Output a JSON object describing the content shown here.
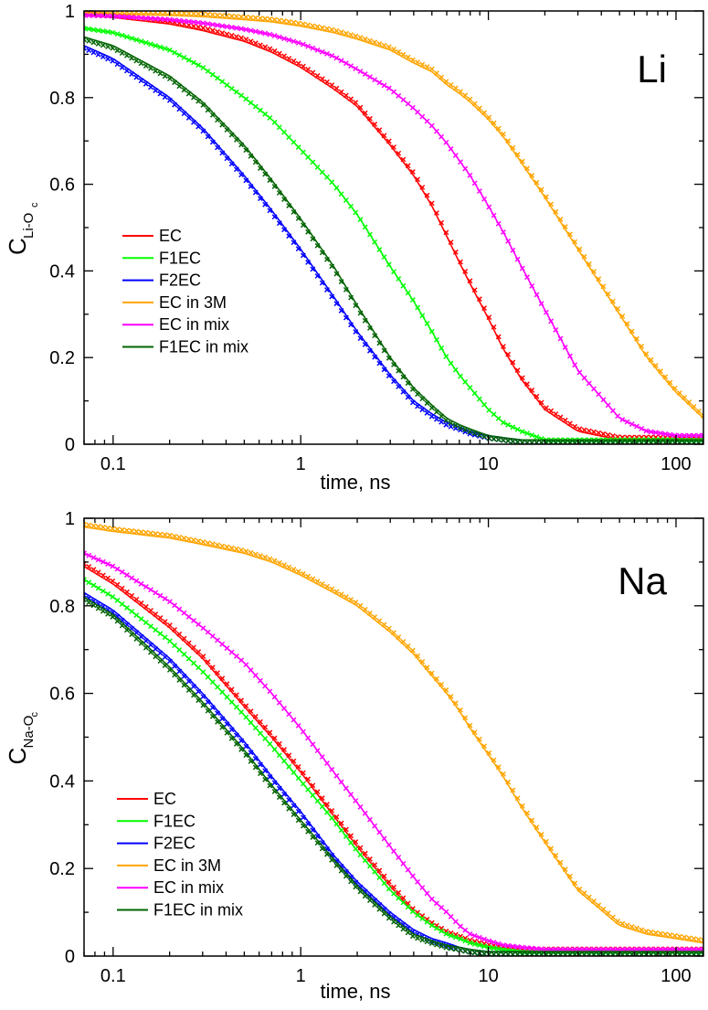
{
  "colors": {
    "EC": "#ff0000",
    "F1EC": "#00ff00",
    "F2EC": "#0000ff",
    "EC in 3M": "#ffa500",
    "EC in mix": "#ff00ff",
    "F1EC in mix": "#006400"
  },
  "chart_data": [
    {
      "type": "line",
      "panel_label": "Li",
      "xlabel": "time, ns",
      "ylabel": {
        "main": "C",
        "sub": "Li-O",
        "subsub": "c"
      },
      "x_scale": "log",
      "xlim": [
        0.07,
        140
      ],
      "ylim": [
        0,
        1
      ],
      "x_ticks": [
        0.1,
        1,
        10,
        100
      ],
      "x_tick_labels": [
        "0.1",
        "1",
        "10",
        "100"
      ],
      "y_ticks": [
        0,
        0.2,
        0.4,
        0.6,
        0.8,
        1
      ],
      "y_tick_labels": [
        "0",
        "0.2",
        "0.4",
        "0.6",
        "0.8",
        "1"
      ],
      "legend_position": "center-left",
      "markers": "x (simulation)",
      "lines": "fit",
      "series": [
        {
          "name": "EC",
          "x": [
            0.07,
            0.1,
            0.2,
            0.3,
            0.5,
            0.7,
            1,
            1.5,
            2,
            3,
            4,
            5,
            6,
            7,
            8,
            10,
            12,
            15,
            20,
            30,
            50,
            70,
            100,
            140
          ],
          "y": [
            0.99,
            0.985,
            0.97,
            0.955,
            0.93,
            0.905,
            0.87,
            0.82,
            0.78,
            0.69,
            0.62,
            0.55,
            0.48,
            0.42,
            0.37,
            0.29,
            0.22,
            0.15,
            0.08,
            0.03,
            0.01,
            0.01,
            0.01,
            0.01
          ]
        },
        {
          "name": "F1EC",
          "x": [
            0.07,
            0.1,
            0.2,
            0.3,
            0.5,
            0.7,
            1,
            1.5,
            2,
            3,
            4,
            5,
            6,
            7,
            8,
            10,
            12,
            15,
            20,
            30,
            50,
            70,
            100,
            140
          ],
          "y": [
            0.96,
            0.95,
            0.91,
            0.87,
            0.8,
            0.75,
            0.68,
            0.6,
            0.53,
            0.41,
            0.33,
            0.26,
            0.2,
            0.16,
            0.13,
            0.08,
            0.05,
            0.03,
            0.01,
            0.01,
            0.01,
            0.01,
            0.01,
            0.01
          ]
        },
        {
          "name": "F2EC",
          "x": [
            0.07,
            0.1,
            0.2,
            0.3,
            0.5,
            0.7,
            1,
            1.5,
            2,
            3,
            4,
            5,
            6,
            7,
            8,
            10,
            12,
            15,
            20,
            30,
            50,
            70,
            100,
            140
          ],
          "y": [
            0.92,
            0.89,
            0.8,
            0.73,
            0.62,
            0.54,
            0.45,
            0.34,
            0.26,
            0.16,
            0.1,
            0.07,
            0.05,
            0.04,
            0.03,
            0.02,
            0.015,
            0.01,
            0.01,
            0.01,
            0.01,
            0.01,
            0.01,
            0.01
          ]
        },
        {
          "name": "EC in 3M",
          "x": [
            0.07,
            0.1,
            0.2,
            0.3,
            0.5,
            0.7,
            1,
            1.5,
            2,
            3,
            4,
            5,
            6,
            7,
            8,
            10,
            12,
            15,
            20,
            30,
            50,
            70,
            100,
            140
          ],
          "y": [
            0.995,
            0.993,
            0.99,
            0.987,
            0.98,
            0.975,
            0.965,
            0.95,
            0.935,
            0.91,
            0.88,
            0.86,
            0.83,
            0.81,
            0.79,
            0.75,
            0.71,
            0.65,
            0.57,
            0.45,
            0.3,
            0.2,
            0.12,
            0.06
          ]
        },
        {
          "name": "EC in mix",
          "x": [
            0.07,
            0.1,
            0.2,
            0.3,
            0.5,
            0.7,
            1,
            1.5,
            2,
            3,
            4,
            5,
            6,
            7,
            8,
            10,
            12,
            15,
            20,
            30,
            50,
            70,
            100,
            140
          ],
          "y": [
            0.99,
            0.988,
            0.98,
            0.972,
            0.958,
            0.945,
            0.925,
            0.895,
            0.865,
            0.82,
            0.775,
            0.735,
            0.695,
            0.655,
            0.62,
            0.55,
            0.49,
            0.41,
            0.31,
            0.17,
            0.06,
            0.03,
            0.02,
            0.02
          ]
        },
        {
          "name": "F1EC in mix",
          "x": [
            0.07,
            0.1,
            0.2,
            0.3,
            0.5,
            0.7,
            1,
            1.5,
            2,
            3,
            4,
            5,
            6,
            7,
            8,
            10,
            12,
            15,
            20,
            30,
            50,
            70,
            100,
            140
          ],
          "y": [
            0.94,
            0.92,
            0.85,
            0.79,
            0.69,
            0.61,
            0.52,
            0.41,
            0.32,
            0.2,
            0.13,
            0.09,
            0.06,
            0.045,
            0.035,
            0.02,
            0.015,
            0.01,
            0.01,
            0.01,
            0.01,
            0.01,
            0.01,
            0.01
          ]
        }
      ]
    },
    {
      "type": "line",
      "panel_label": "Na",
      "xlabel": "time, ns",
      "ylabel": {
        "main": "C",
        "sub": "Na-O",
        "subsub": "c"
      },
      "x_scale": "log",
      "xlim": [
        0.07,
        140
      ],
      "ylim": [
        0,
        1
      ],
      "x_ticks": [
        0.1,
        1,
        10,
        100
      ],
      "x_tick_labels": [
        "0.1",
        "1",
        "10",
        "100"
      ],
      "y_ticks": [
        0,
        0.2,
        0.4,
        0.6,
        0.8,
        1
      ],
      "y_tick_labels": [
        "0",
        "0.2",
        "0.4",
        "0.6",
        "0.8",
        "1"
      ],
      "legend_position": "bottom-left",
      "markers": "x (simulation)",
      "lines": "fit",
      "series": [
        {
          "name": "EC",
          "x": [
            0.07,
            0.1,
            0.2,
            0.3,
            0.5,
            0.7,
            1,
            1.5,
            2,
            3,
            4,
            5,
            6,
            7,
            8,
            10,
            12,
            15,
            20,
            30,
            50,
            70,
            100,
            140
          ],
          "y": [
            0.89,
            0.85,
            0.75,
            0.68,
            0.57,
            0.5,
            0.42,
            0.32,
            0.25,
            0.16,
            0.1,
            0.07,
            0.05,
            0.04,
            0.03,
            0.02,
            0.015,
            0.01,
            0.01,
            0.01,
            0.01,
            0.01,
            0.01,
            0.01
          ]
        },
        {
          "name": "F1EC",
          "x": [
            0.07,
            0.1,
            0.2,
            0.3,
            0.5,
            0.7,
            1,
            1.5,
            2,
            3,
            4,
            5,
            6,
            7,
            8,
            10,
            12,
            15,
            20,
            30,
            50,
            70,
            100,
            140
          ],
          "y": [
            0.86,
            0.82,
            0.72,
            0.65,
            0.55,
            0.48,
            0.4,
            0.31,
            0.24,
            0.15,
            0.1,
            0.07,
            0.05,
            0.04,
            0.03,
            0.02,
            0.015,
            0.01,
            0.01,
            0.01,
            0.01,
            0.01,
            0.01,
            0.01
          ]
        },
        {
          "name": "F2EC",
          "x": [
            0.07,
            0.1,
            0.2,
            0.3,
            0.5,
            0.7,
            1,
            1.5,
            2,
            3,
            4,
            5,
            6,
            7,
            8,
            10,
            12,
            15,
            20,
            30,
            50,
            70,
            100,
            140
          ],
          "y": [
            0.83,
            0.79,
            0.68,
            0.6,
            0.49,
            0.41,
            0.33,
            0.23,
            0.17,
            0.1,
            0.06,
            0.04,
            0.03,
            0.02,
            0.015,
            0.01,
            0.01,
            0.01,
            0.01,
            0.01,
            0.01,
            0.01,
            0.01,
            0.01
          ]
        },
        {
          "name": "EC in 3M",
          "x": [
            0.07,
            0.1,
            0.2,
            0.3,
            0.5,
            0.7,
            1,
            1.5,
            2,
            3,
            4,
            5,
            6,
            7,
            8,
            10,
            12,
            15,
            20,
            30,
            50,
            70,
            100,
            140
          ],
          "y": [
            0.98,
            0.97,
            0.955,
            0.94,
            0.92,
            0.9,
            0.87,
            0.83,
            0.8,
            0.74,
            0.69,
            0.64,
            0.6,
            0.56,
            0.52,
            0.46,
            0.41,
            0.34,
            0.26,
            0.15,
            0.07,
            0.05,
            0.04,
            0.03
          ]
        },
        {
          "name": "EC in mix",
          "x": [
            0.07,
            0.1,
            0.2,
            0.3,
            0.5,
            0.7,
            1,
            1.5,
            2,
            3,
            4,
            5,
            6,
            7,
            8,
            10,
            12,
            15,
            20,
            30,
            50,
            70,
            100,
            140
          ],
          "y": [
            0.92,
            0.89,
            0.81,
            0.75,
            0.67,
            0.6,
            0.52,
            0.42,
            0.35,
            0.25,
            0.18,
            0.13,
            0.1,
            0.07,
            0.05,
            0.035,
            0.025,
            0.02,
            0.015,
            0.015,
            0.015,
            0.015,
            0.015,
            0.015
          ]
        },
        {
          "name": "F1EC in mix",
          "x": [
            0.07,
            0.1,
            0.2,
            0.3,
            0.5,
            0.7,
            1,
            1.5,
            2,
            3,
            4,
            5,
            6,
            7,
            8,
            10,
            12,
            15,
            20,
            30,
            50,
            70,
            100,
            140
          ],
          "y": [
            0.82,
            0.78,
            0.66,
            0.58,
            0.47,
            0.39,
            0.31,
            0.22,
            0.16,
            0.09,
            0.05,
            0.035,
            0.025,
            0.02,
            0.015,
            0.01,
            0.01,
            0.01,
            0.01,
            0.01,
            0.01,
            0.01,
            0.01,
            0.01
          ]
        }
      ]
    }
  ]
}
